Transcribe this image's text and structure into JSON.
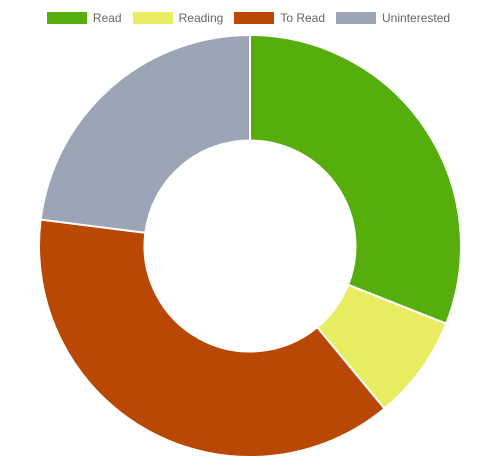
{
  "chart_data": {
    "type": "pie",
    "variant": "doughnut",
    "categories": [
      "Read",
      "Reading",
      "To Read",
      "Uninterested"
    ],
    "values": [
      31,
      8,
      38,
      23
    ],
    "colors": [
      "#55ae0b",
      "#e9ed61",
      "#b84803",
      "#9ba5b6"
    ],
    "legend": "top",
    "title": "",
    "start_angle_deg": 0,
    "direction": "clockwise",
    "cutout_fraction": 0.5
  },
  "legend": {
    "items": [
      {
        "label": "Read",
        "color": "#55ae0b"
      },
      {
        "label": "Reading",
        "color": "#e9ed61"
      },
      {
        "label": "To Read",
        "color": "#b84803"
      },
      {
        "label": "Uninterested",
        "color": "#9ba5b6"
      }
    ]
  }
}
